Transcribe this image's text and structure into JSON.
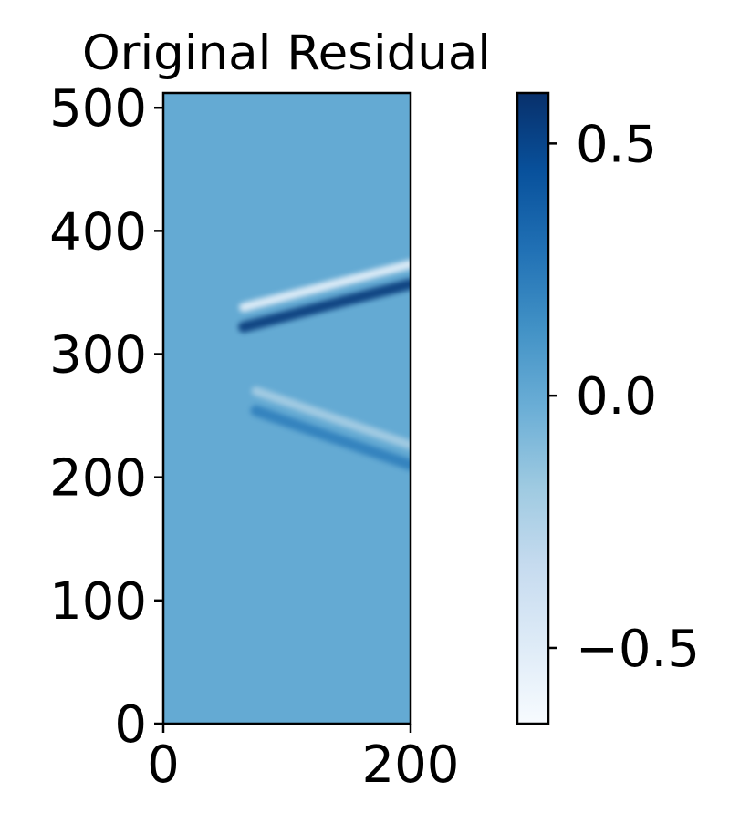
{
  "chart_data": {
    "type": "heatmap",
    "title": "Original Residual",
    "xlabel": "",
    "ylabel": "",
    "xlim": [
      0,
      200
    ],
    "ylim": [
      0,
      512
    ],
    "x_ticks": [
      {
        "value": 0,
        "label": "0"
      },
      {
        "value": 200,
        "label": "200"
      }
    ],
    "y_ticks": [
      {
        "value": 0,
        "label": "0"
      },
      {
        "value": 100,
        "label": "100"
      },
      {
        "value": 200,
        "label": "200"
      },
      {
        "value": 300,
        "label": "300"
      },
      {
        "value": 400,
        "label": "400"
      },
      {
        "value": 500,
        "label": "500"
      }
    ],
    "background_value": 0.0,
    "features": [
      {
        "name": "upper arc",
        "x_start": 65,
        "x_end": 200,
        "y_start": 330,
        "y_end": 365,
        "amplitude": 0.55
      },
      {
        "name": "lower arc",
        "x_start": 75,
        "x_end": 200,
        "y_start": 262,
        "y_end": 218,
        "amplitude": 0.22
      }
    ],
    "colorbar": {
      "cmap": "Blues",
      "vmin": -0.65,
      "vmax": 0.6,
      "ticks": [
        {
          "value": 0.5,
          "label": "0.5"
        },
        {
          "value": 0.0,
          "label": "0.0"
        },
        {
          "value": -0.5,
          "label": "−0.5"
        }
      ]
    },
    "grid": false
  }
}
